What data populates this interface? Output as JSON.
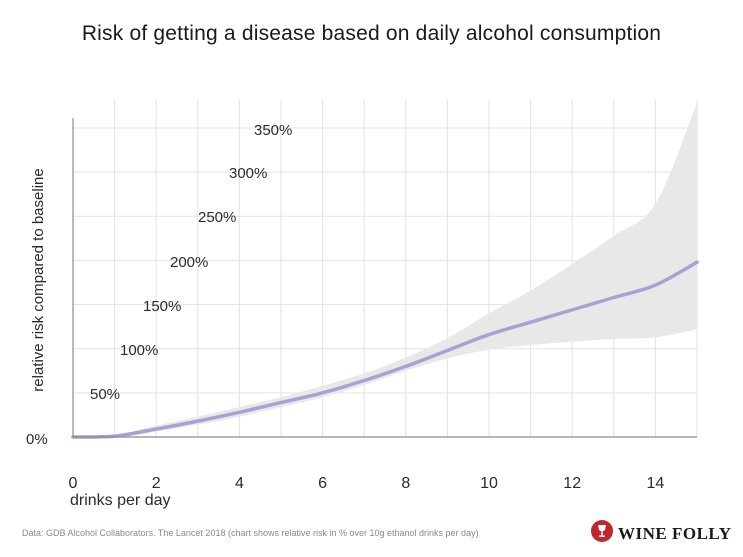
{
  "title": "Risk of getting a disease based on daily alcohol consumption",
  "footer": {
    "source": "Data: GDB Alcohol Collaborators. The Lancet 2018 (chart shows relative risk in % over 10g ethanol drinks per day)"
  },
  "brand": {
    "name": "WINE FOLLY",
    "logo_icon": "wine-glass-logo-icon",
    "logo_color": "#c0272d"
  },
  "colors": {
    "line": "#ab9fd4",
    "band": "#e8e8e8",
    "grid": "#e3e3e3",
    "axis": "#8c8c8c"
  },
  "chart_data": {
    "type": "line",
    "title": "Risk of getting a disease based on daily alcohol consumption",
    "xlabel": "drinks per day",
    "ylabel": "relative risk compared to baseline",
    "xlim": [
      0,
      15
    ],
    "ylim": [
      0,
      350
    ],
    "x_ticks": [
      0,
      2,
      4,
      6,
      8,
      10,
      12,
      14
    ],
    "y_ticks": [
      0,
      50,
      100,
      150,
      200,
      250,
      300,
      350
    ],
    "y_tick_labels": [
      "0%",
      "50%",
      "100%",
      "150%",
      "200%",
      "250%",
      "300%",
      "350%"
    ],
    "grid": true,
    "series": [
      {
        "x": [
          0,
          1,
          2,
          3,
          4,
          5,
          6,
          7,
          8,
          9,
          10,
          11,
          12,
          13,
          14,
          15
        ],
        "values": [
          0,
          1,
          9,
          18,
          28,
          39,
          50,
          64,
          80,
          98,
          116,
          130,
          144,
          158,
          172,
          198
        ]
      }
    ],
    "uncertainty_band": {
      "x": [
        0,
        1,
        2,
        3,
        4,
        5,
        6,
        7,
        8,
        9,
        10,
        11,
        12,
        13,
        14,
        15
      ],
      "lower": [
        0,
        0,
        6,
        14,
        23,
        34,
        45,
        59,
        75,
        89,
        99,
        104,
        108,
        111,
        113,
        122
      ],
      "upper": [
        0,
        2,
        13,
        23,
        34,
        45,
        58,
        72,
        90,
        112,
        140,
        166,
        196,
        228,
        264,
        378
      ]
    }
  }
}
